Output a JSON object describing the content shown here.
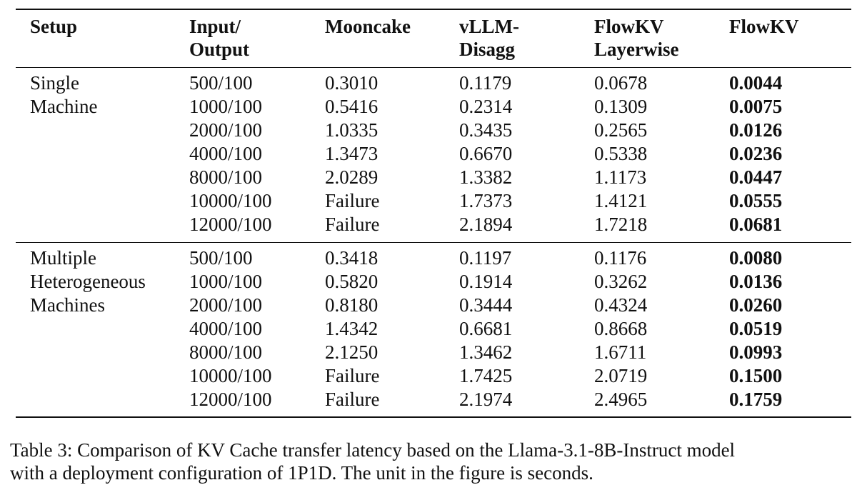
{
  "table": {
    "headers": [
      [
        "Setup"
      ],
      [
        "Input/",
        "Output"
      ],
      [
        "Mooncake"
      ],
      [
        "vLLM-",
        "Disagg"
      ],
      [
        "FlowKV",
        "Layerwise"
      ],
      [
        "FlowKV"
      ]
    ],
    "groups": [
      {
        "setup": [
          "Single",
          "Machine"
        ],
        "rows": [
          [
            "500/100",
            "0.3010",
            "0.1179",
            "0.0678",
            "0.0044"
          ],
          [
            "1000/100",
            "0.5416",
            "0.2314",
            "0.1309",
            "0.0075"
          ],
          [
            "2000/100",
            "1.0335",
            "0.3435",
            "0.2565",
            "0.0126"
          ],
          [
            "4000/100",
            "1.3473",
            "0.6670",
            "0.5338",
            "0.0236"
          ],
          [
            "8000/100",
            "2.0289",
            "1.3382",
            "1.1173",
            "0.0447"
          ],
          [
            "10000/100",
            "Failure",
            "1.7373",
            "1.4121",
            "0.0555"
          ],
          [
            "12000/100",
            "Failure",
            "2.1894",
            "1.7218",
            "0.0681"
          ]
        ]
      },
      {
        "setup": [
          "Multiple",
          "Heterogeneous",
          "Machines"
        ],
        "rows": [
          [
            "500/100",
            "0.3418",
            "0.1197",
            "0.1176",
            "0.0080"
          ],
          [
            "1000/100",
            "0.5820",
            "0.1914",
            "0.3262",
            "0.0136"
          ],
          [
            "2000/100",
            "0.8180",
            "0.3444",
            "0.4324",
            "0.0260"
          ],
          [
            "4000/100",
            "1.4342",
            "0.6681",
            "0.8668",
            "0.0519"
          ],
          [
            "8000/100",
            "2.1250",
            "1.3462",
            "1.6711",
            "0.0993"
          ],
          [
            "10000/100",
            "Failure",
            "1.7425",
            "2.0719",
            "0.1500"
          ],
          [
            "12000/100",
            "Failure",
            "2.1974",
            "2.4965",
            "0.1759"
          ]
        ]
      }
    ]
  },
  "caption": [
    "Table 3: Comparison of KV Cache transfer latency based on the Llama-3.1-8B-Instruct model",
    "with a deployment configuration of 1P1D. The unit in the figure is seconds."
  ]
}
